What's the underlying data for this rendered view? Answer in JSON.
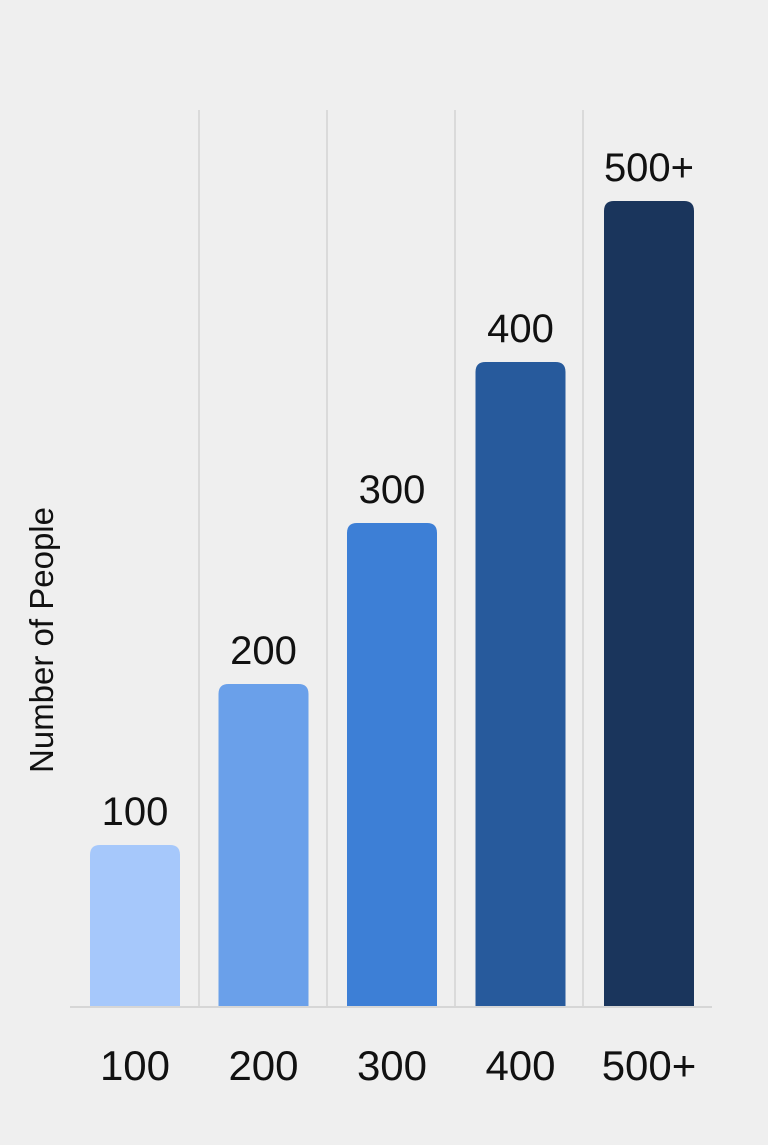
{
  "chart_data": {
    "type": "bar",
    "title": "",
    "xlabel": "",
    "ylabel": "Number of People",
    "categories": [
      "100",
      "200",
      "300",
      "400",
      "500+"
    ],
    "values": [
      100,
      200,
      300,
      400,
      500
    ],
    "data_labels": [
      "100",
      "200",
      "300",
      "400",
      "500+"
    ],
    "colors": [
      "#a6c8fb",
      "#6aa0ea",
      "#3d7fd6",
      "#275a9c",
      "#1a355c"
    ],
    "ylim": [
      0,
      500
    ],
    "grid": "vertical",
    "legend": "none"
  }
}
